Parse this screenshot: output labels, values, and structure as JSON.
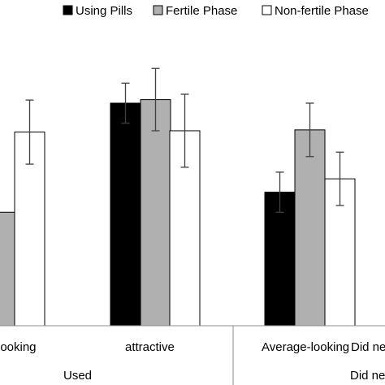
{
  "chart_data": {
    "type": "bar",
    "legend": [
      {
        "name": "Using Pills",
        "color": "#000000"
      },
      {
        "name": "Fertile Phase",
        "color": "#b0b0b0"
      },
      {
        "name": "Non-fertile Phase",
        "color": "#ffffff"
      }
    ],
    "legend_position": "top-right",
    "categories": [
      "-looking",
      "attractive",
      "Average-looking",
      "Did ne"
    ],
    "group_labels": [
      "Used",
      "Did ne"
    ],
    "series": [
      {
        "name": "Using Pills",
        "values": [
          null,
          5.0,
          3.0,
          null
        ],
        "errors": [
          null,
          0.45,
          0.45,
          null
        ]
      },
      {
        "name": "Fertile Phase",
        "values": [
          2.55,
          5.08,
          4.4,
          null
        ],
        "errors": [
          null,
          0.7,
          0.6,
          null
        ]
      },
      {
        "name": "Non-fertile Phase",
        "values": [
          4.35,
          4.38,
          3.3,
          null
        ],
        "errors": [
          0.72,
          0.82,
          0.6,
          null
        ]
      }
    ],
    "ylim": [
      0,
      7
    ],
    "grid": false
  }
}
